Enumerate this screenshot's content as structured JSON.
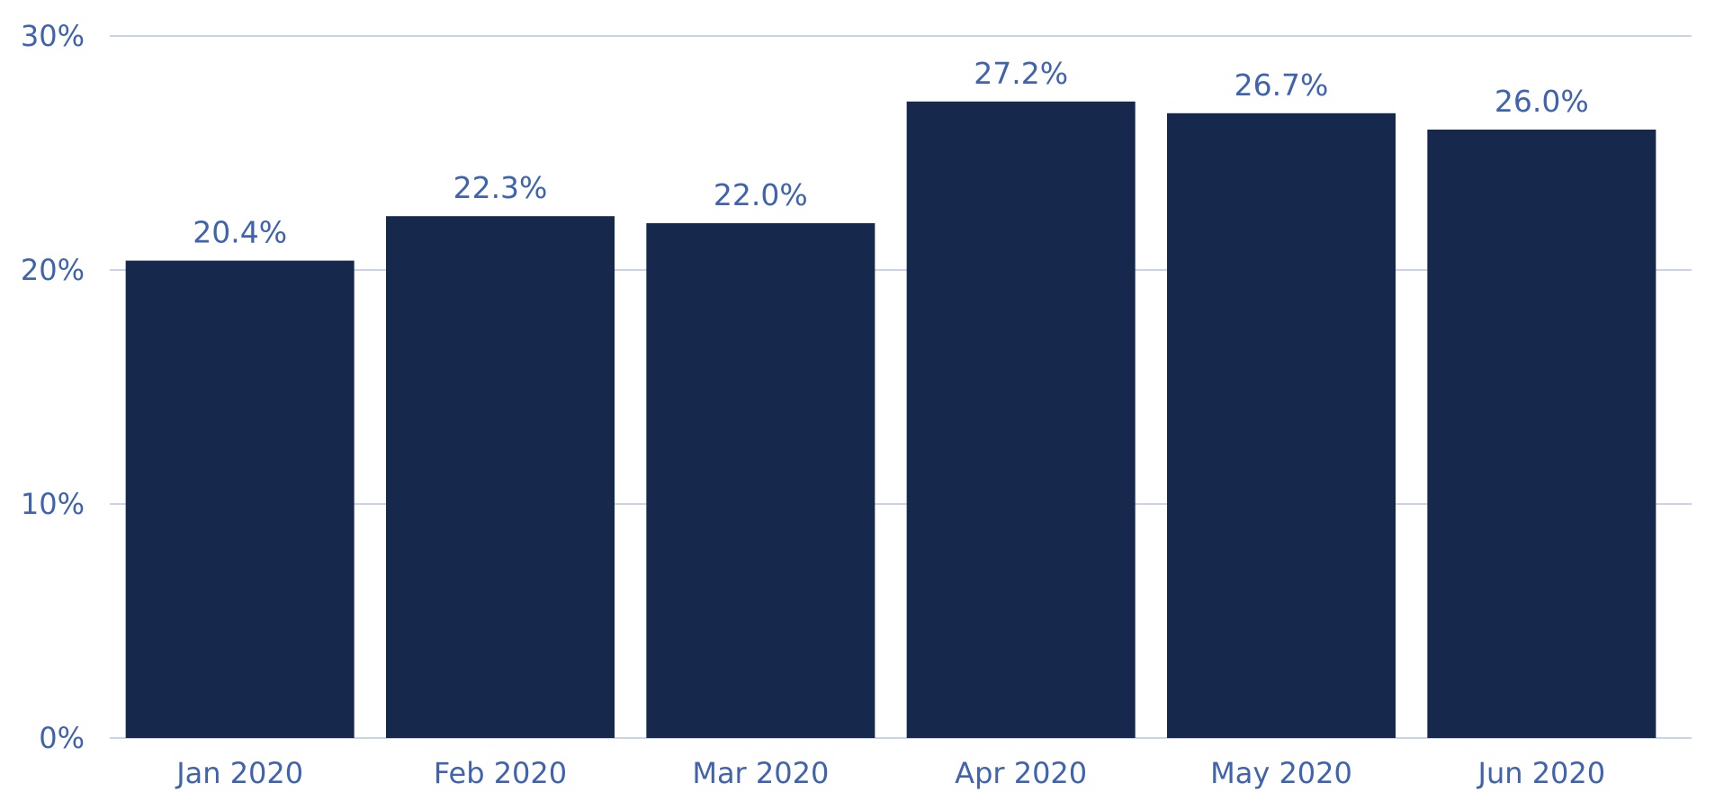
{
  "chart_data": {
    "type": "bar",
    "categories": [
      "Jan 2020",
      "Feb 2020",
      "Mar 2020",
      "Apr 2020",
      "May 2020",
      "Jun 2020"
    ],
    "values": [
      20.4,
      22.3,
      22.0,
      27.2,
      26.7,
      26.0
    ],
    "data_labels": [
      "20.4%",
      "22.3%",
      "22.0%",
      "27.2%",
      "26.7%",
      "26.0%"
    ],
    "y_ticks": [
      0,
      10,
      20,
      30
    ],
    "y_tick_labels": [
      "0%",
      "10%",
      "20%",
      "30%"
    ],
    "ylim": [
      0,
      30
    ],
    "grid": true,
    "legend": "none",
    "title": "",
    "xlabel": "",
    "ylabel": "",
    "bar_color": "#17284d",
    "label_color": "#3f63ad",
    "grid_color": "#c9d4ea"
  }
}
